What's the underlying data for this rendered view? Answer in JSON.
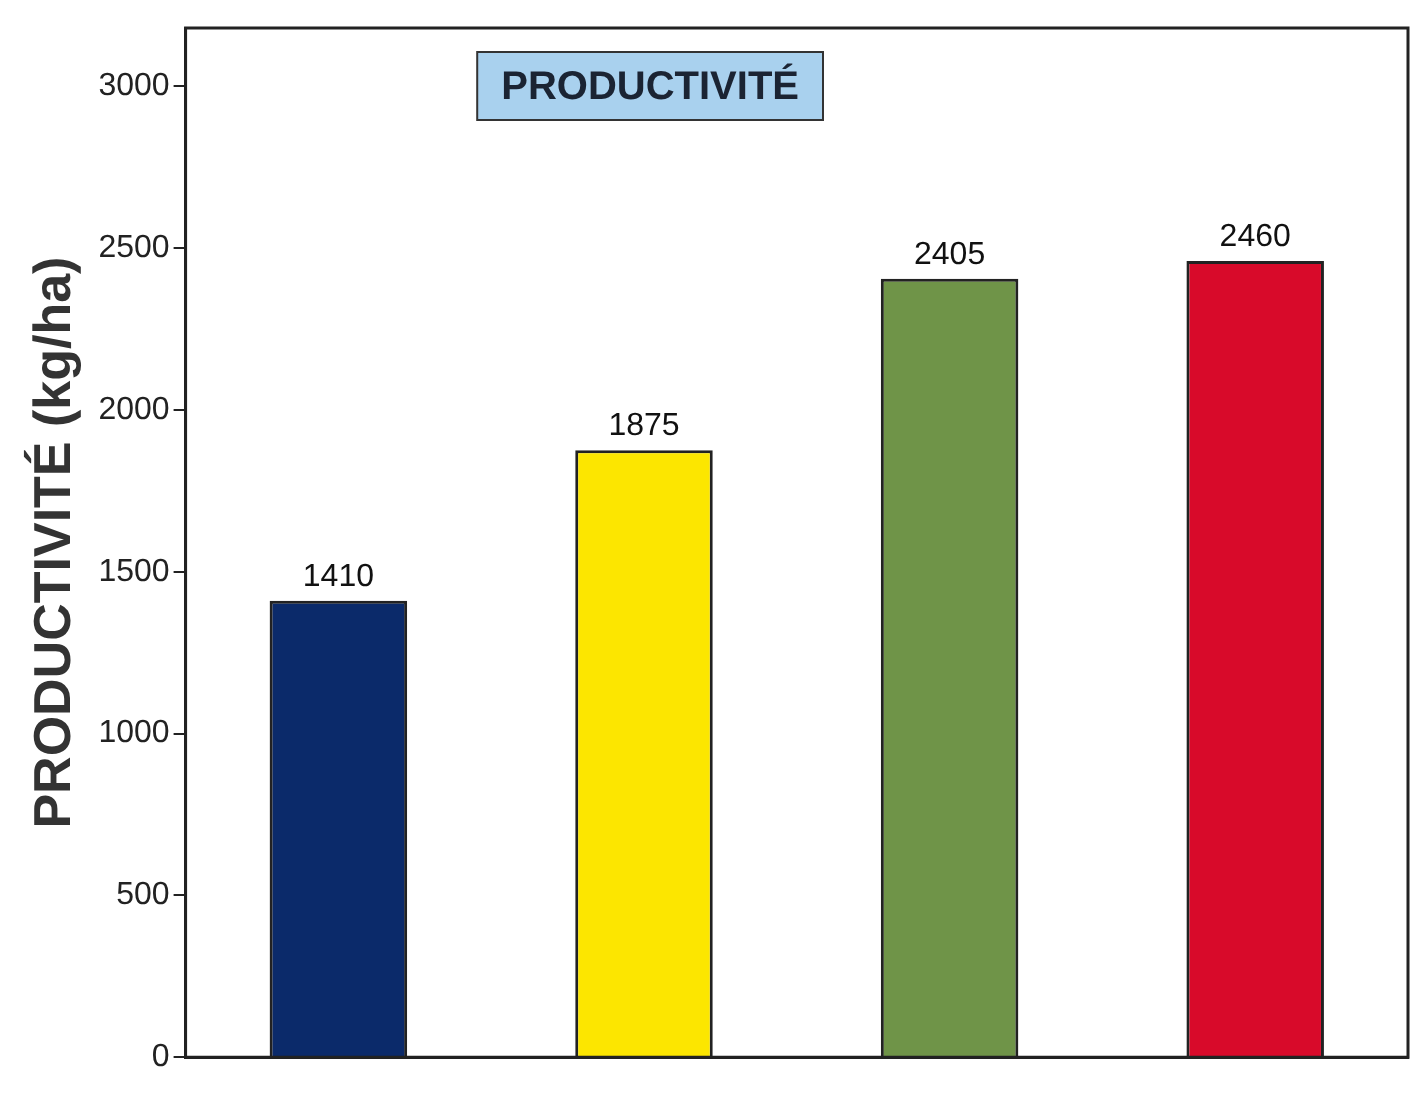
{
  "chart_data": {
    "type": "bar",
    "title": "PRODUCTIVITÉ",
    "ylabel": "PRODUCTIVITÉ (kg/ha)",
    "categories": [
      null,
      null,
      null,
      null
    ],
    "values": [
      1410,
      1875,
      2405,
      2460
    ],
    "colors": [
      "#0b2a6a",
      "#fce600",
      "#6f9448",
      "#d80a2a"
    ],
    "ylim": [
      0,
      3180
    ],
    "yticks": [
      0,
      500,
      1000,
      1500,
      2000,
      2500,
      3000
    ],
    "data_labels": true,
    "grid": false,
    "legend": false
  }
}
